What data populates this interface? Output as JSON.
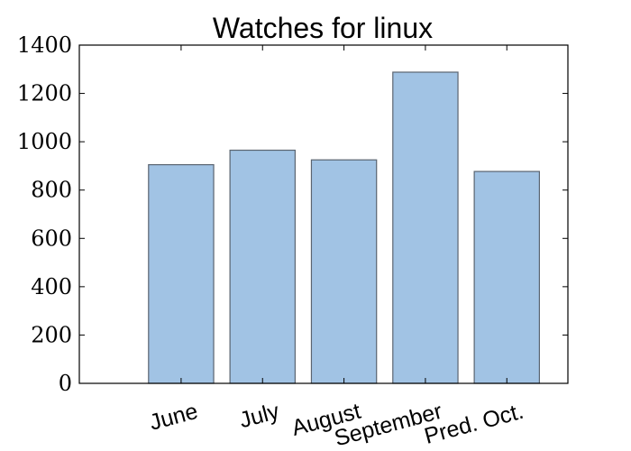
{
  "chart_data": {
    "type": "bar",
    "title": "Watches for linux",
    "xlabel": "",
    "ylabel": "",
    "categories": [
      "June",
      "July",
      "August",
      "September",
      "Pred. Oct."
    ],
    "values": [
      905,
      965,
      925,
      1288,
      877
    ],
    "ylim": [
      0,
      1400
    ],
    "yticks": [
      0,
      200,
      400,
      600,
      800,
      1000,
      1200,
      1400
    ],
    "grid": false,
    "legend": "none",
    "bar_color": "#a1c3e4",
    "bar_edge_color": "#5a6470"
  }
}
